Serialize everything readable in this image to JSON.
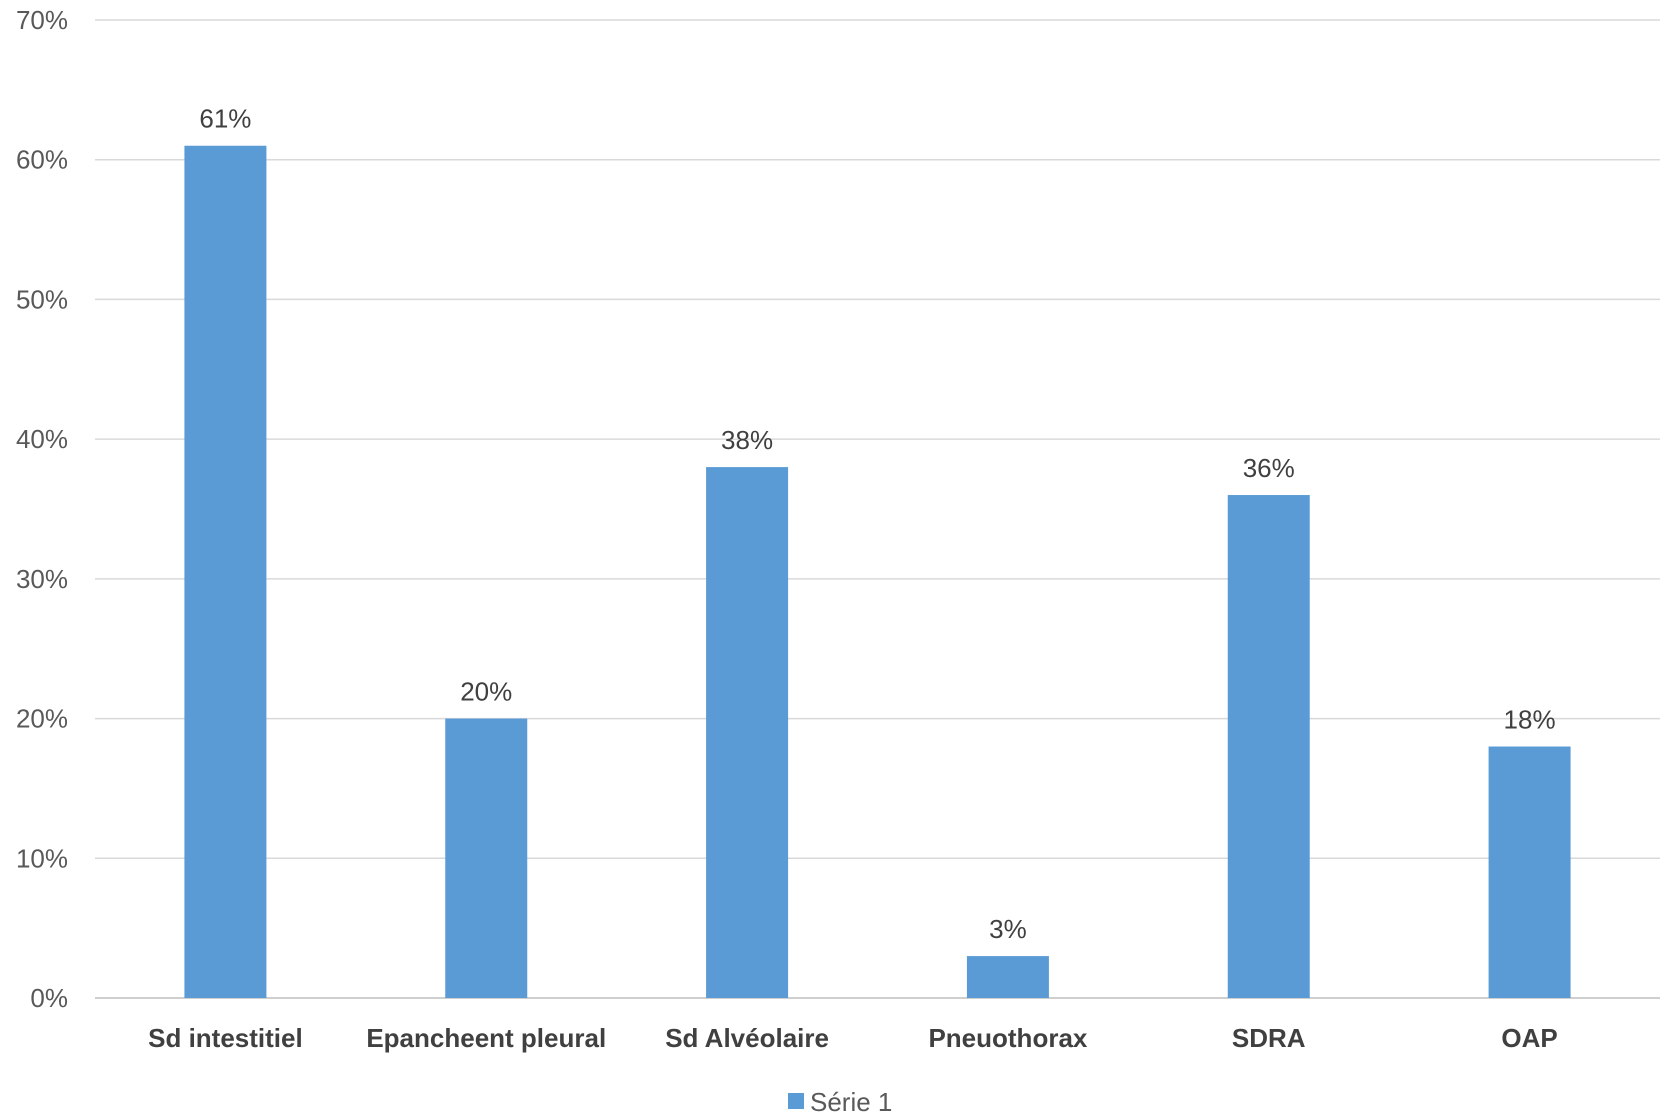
{
  "chart_data": {
    "type": "bar",
    "categories": [
      "Sd intestitiel",
      "Epancheent pleural",
      "Sd Alvéolaire",
      "Pneuothorax",
      "SDRA",
      "OAP"
    ],
    "series": [
      {
        "name": "Série 1",
        "values": [
          61,
          20,
          38,
          3,
          36,
          18
        ],
        "color": "#5b9bd5"
      }
    ],
    "data_labels": [
      "61%",
      "20%",
      "38%",
      "3%",
      "36%",
      "18%"
    ],
    "y_ticks": [
      "0%",
      "10%",
      "20%",
      "30%",
      "40%",
      "50%",
      "60%",
      "70%"
    ],
    "ylim": [
      0,
      70
    ],
    "y_unit": "%",
    "grid": true,
    "legend_position": "bottom",
    "title": "",
    "xlabel": "",
    "ylabel": ""
  },
  "colors": {
    "bar": "#5b9bd5",
    "grid": "#d9d9d9",
    "axis": "#bfbfbf"
  }
}
